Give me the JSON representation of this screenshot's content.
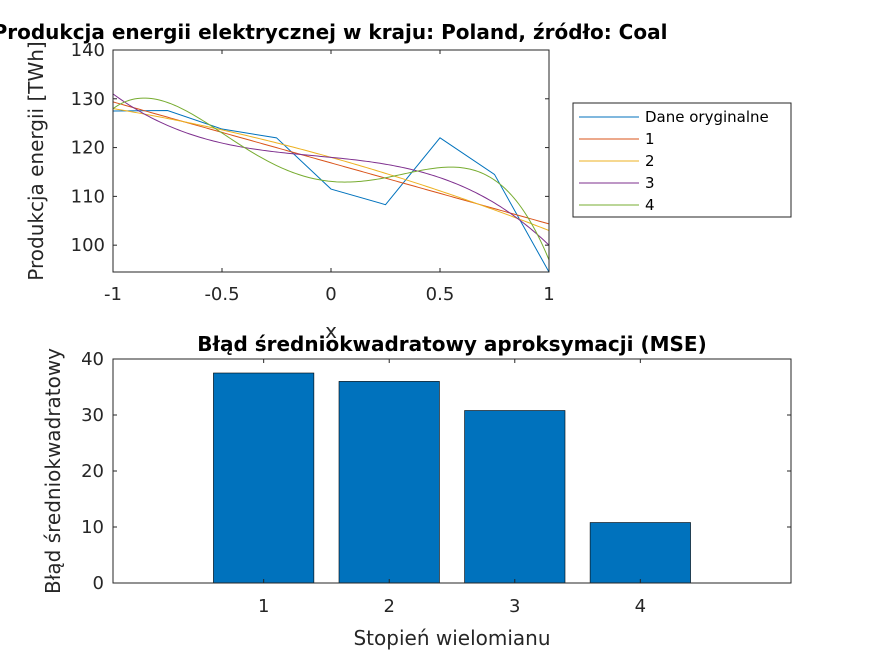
{
  "chart_data": [
    {
      "type": "line",
      "title": "Produkcja energii elektrycznej w kraju: Poland, źródło: Coal",
      "xlabel": "x",
      "ylabel": "Produkcja energii [TWh]",
      "xlim": [
        -1,
        1
      ],
      "ylim": [
        94.5,
        140
      ],
      "xticks": [
        -1,
        -0.5,
        0,
        0.5,
        1
      ],
      "xtick_labels": [
        "-1",
        "-0.5",
        "0",
        "0.5",
        "1"
      ],
      "yticks": [
        100,
        110,
        120,
        130,
        140
      ],
      "ytick_labels": [
        "100",
        "110",
        "120",
        "130",
        "140"
      ],
      "grid": false,
      "legend_position": "outside-right",
      "series": [
        {
          "name": "Dane oryginalne",
          "color": "#0072BD",
          "x": [
            -1,
            -0.75,
            -0.5,
            -0.25,
            0,
            0.25,
            0.5,
            0.75,
            1
          ],
          "y": [
            127.5,
            127.6,
            123.8,
            122.0,
            111.5,
            108.3,
            122.0,
            114.5,
            94.5
          ]
        },
        {
          "name": "1",
          "color": "#D95319",
          "poly": [
            116.86,
            -12.5
          ]
        },
        {
          "name": "2",
          "color": "#EDB120",
          "poly": [
            118.0,
            -12.5,
            -2.5
          ]
        },
        {
          "name": "3",
          "color": "#7E2F8E",
          "poly": [
            118.0,
            -4.3,
            -2.5,
            -11.2
          ]
        },
        {
          "name": "4",
          "color": "#77AC30",
          "poly": [
            113.07,
            -4.3,
            34.2,
            -11.2,
            -34.8
          ]
        }
      ]
    },
    {
      "type": "bar",
      "title": "Błąd średniokwadratowy aproksymacji (MSE)",
      "xlabel": "Stopień wielomianu",
      "ylabel": "Błąd średniokwadratowy",
      "categories": [
        "1",
        "2",
        "3",
        "4"
      ],
      "values": [
        37.5,
        36.0,
        30.8,
        10.8
      ],
      "xlim": [
        -0.2,
        5.2
      ],
      "ylim": [
        0,
        40
      ],
      "yticks": [
        0,
        10,
        20,
        30,
        40
      ],
      "ytick_labels": [
        "0",
        "10",
        "20",
        "30",
        "40"
      ],
      "color": "#0072BD",
      "grid": false
    }
  ]
}
